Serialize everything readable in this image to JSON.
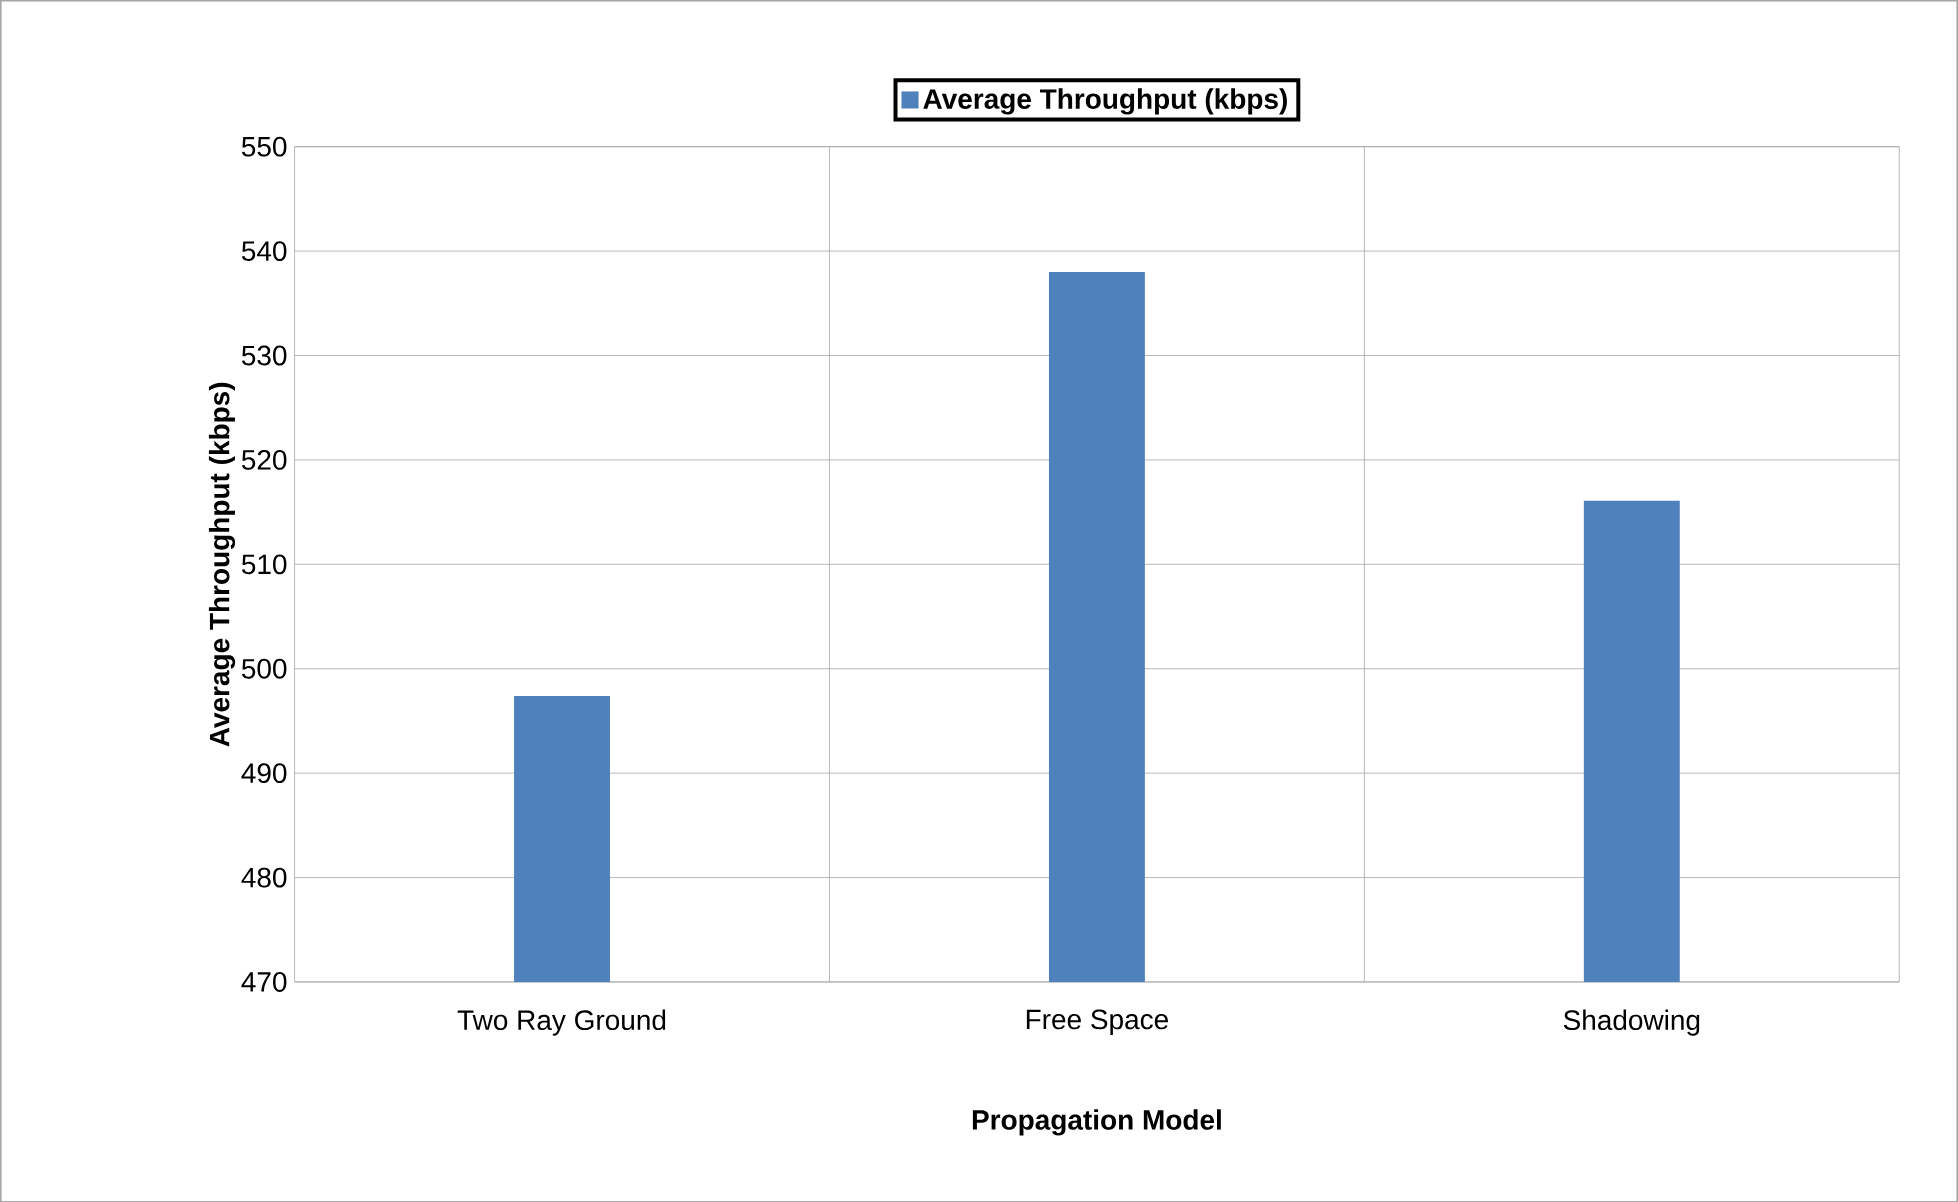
{
  "chart_data": {
    "type": "bar",
    "xlabel": "Propagation Model",
    "ylabel": "Average Throughput (kbps)",
    "categories": [
      "Two Ray Ground",
      "Free Space",
      "Shadowing"
    ],
    "series": [
      {
        "name": "Average Throughput (kbps)",
        "color": "#4f81bd",
        "values": [
          497.4,
          538,
          516.1
        ]
      }
    ],
    "ylim": [
      470,
      550
    ],
    "yticks": [
      470,
      480,
      490,
      500,
      510,
      520,
      530,
      540,
      550
    ],
    "grid": true,
    "legend": "top"
  }
}
